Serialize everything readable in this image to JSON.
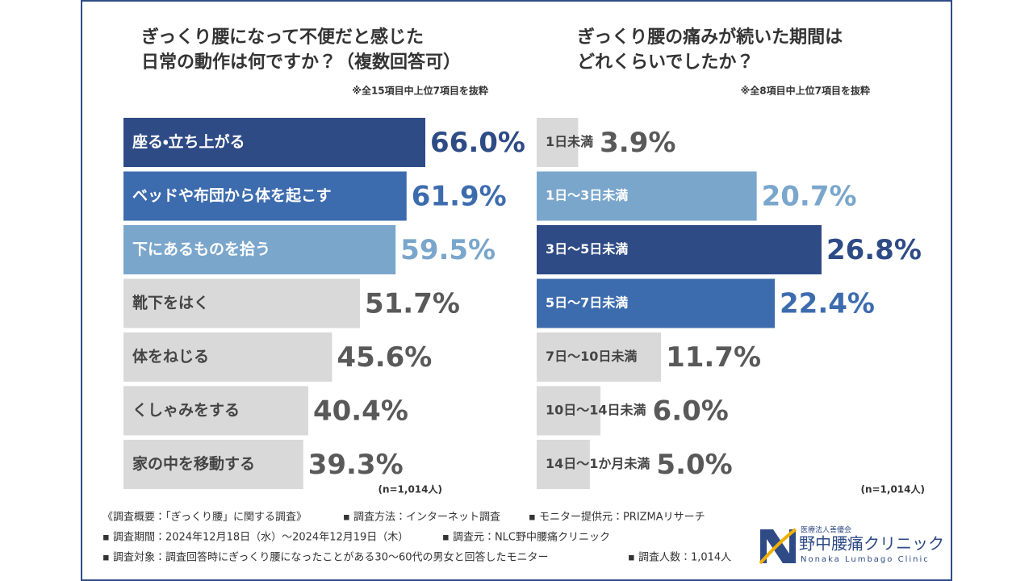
{
  "chart_data": [
    {
      "type": "hbar",
      "title_lines": [
        "ぎっくり腰になって不便だと感じた",
        "日常の動作は何ですか？（複数回答可）"
      ],
      "note": "※全15項目中上位7項目を抜粋",
      "sample": "(n=1,014人)",
      "categories": [
        "座る・立ち上がる",
        "ベッドや布団から体を起こす",
        "下にあるものを拾う",
        "靴下をはく",
        "体をねじる",
        "くしゃみをする",
        "家の中を移動する"
      ],
      "values": [
        66.0,
        61.9,
        59.5,
        51.7,
        45.6,
        40.4,
        39.3
      ],
      "value_labels": [
        "66.0%",
        "61.9%",
        "59.5%",
        "51.7%",
        "45.6%",
        "40.4%",
        "39.3%"
      ],
      "colors": [
        "#2e4b86",
        "#3d6cae",
        "#7aa6cc",
        "#d9d9d9",
        "#d9d9d9",
        "#d9d9d9",
        "#d9d9d9"
      ],
      "value_colors": [
        "#2e4b86",
        "#3d6cae",
        "#7aa6cc",
        "#595959",
        "#595959",
        "#595959",
        "#595959"
      ]
    },
    {
      "type": "hbar",
      "title_lines": [
        "ぎっくり腰の痛みが続いた期間は",
        "どれくらいでしたか？"
      ],
      "note": "※全8項目中上位7項目を抜粋",
      "sample": "(n=1,014人)",
      "categories": [
        "1日未満",
        "1日～3日未満",
        "3日～5日未満",
        "5日～7日未満",
        "7日～10日未満",
        "10日～14日未満",
        "14日～1か月未満"
      ],
      "values": [
        3.9,
        20.7,
        26.8,
        22.4,
        11.7,
        6.0,
        5.0
      ],
      "value_labels": [
        "3.9%",
        "20.7%",
        "26.8%",
        "22.4%",
        "11.7%",
        "6.0%",
        "5.0%"
      ],
      "colors": [
        "#d9d9d9",
        "#7aa6cc",
        "#2e4b86",
        "#3d6cae",
        "#d9d9d9",
        "#d9d9d9",
        "#d9d9d9"
      ],
      "value_colors": [
        "#595959",
        "#7aa6cc",
        "#2e4b86",
        "#3d6cae",
        "#595959",
        "#595959",
        "#595959"
      ]
    }
  ],
  "footer": [
    [
      "《調査概要：「ぎっくり腰」に関する調査》",
      "▪ 調査方法：インターネット調査",
      "▪ モニター提供元：PRIZMAリサーチ"
    ],
    [
      "▪ 調査期間：2024年12月18日（水）～2024年12月19日（木）",
      "▪ 調査元：NLC野中腰痛クリニック"
    ],
    [
      "▪ 調査対象：調査回答時にぎっくり腰になったことがある30～60代の男女と回答したモニター",
      "▪ 調査人数：1,014人"
    ]
  ],
  "logo": {
    "org": "医療法人善優会",
    "name": "野中腰痛クリニック",
    "roman": "Nonaka Lumbago Clinic"
  }
}
